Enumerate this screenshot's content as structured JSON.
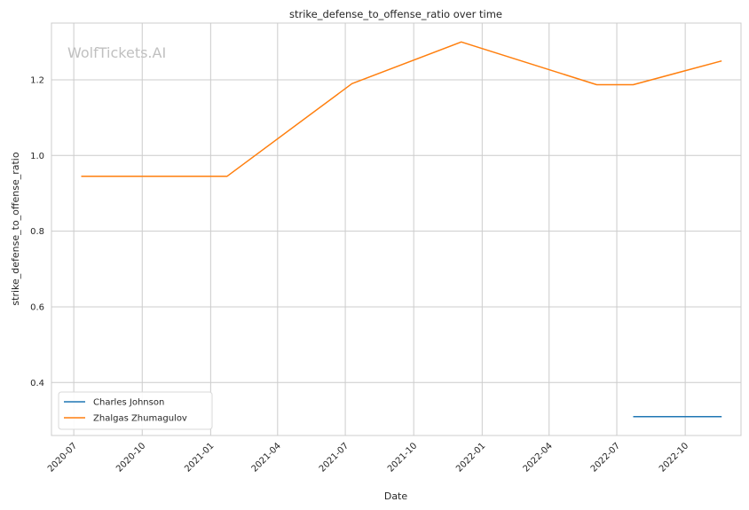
{
  "chart_data": {
    "type": "line",
    "title": "strike_defense_to_offense_ratio over time",
    "xlabel": "Date",
    "ylabel": "strike_defense_to_offense_ratio",
    "watermark": "WolfTickets.AI",
    "x_ticks": [
      "2020-07",
      "2020-10",
      "2021-01",
      "2021-04",
      "2021-07",
      "2021-10",
      "2022-01",
      "2022-04",
      "2022-07",
      "2022-10"
    ],
    "y_ticks": [
      "0.4",
      "0.6",
      "0.8",
      "1.0",
      "1.2"
    ],
    "xlim": [
      "2020-06-01",
      "2022-12-15"
    ],
    "ylim": [
      0.26,
      1.35
    ],
    "grid": true,
    "legend_position": "lower-left",
    "series": [
      {
        "name": "Charles Johnson",
        "color": "#1f77b4",
        "points": [
          [
            "2022-07-23",
            0.31
          ],
          [
            "2022-11-19",
            0.31
          ]
        ]
      },
      {
        "name": "Zhalgas Zhumagulov",
        "color": "#ff7f0e",
        "points": [
          [
            "2020-07-11",
            0.945
          ],
          [
            "2021-01-23",
            0.945
          ],
          [
            "2021-07-10",
            1.19
          ],
          [
            "2021-12-04",
            1.3
          ],
          [
            "2022-06-04",
            1.187
          ],
          [
            "2022-07-23",
            1.187
          ],
          [
            "2022-11-19",
            1.25
          ]
        ]
      }
    ]
  }
}
